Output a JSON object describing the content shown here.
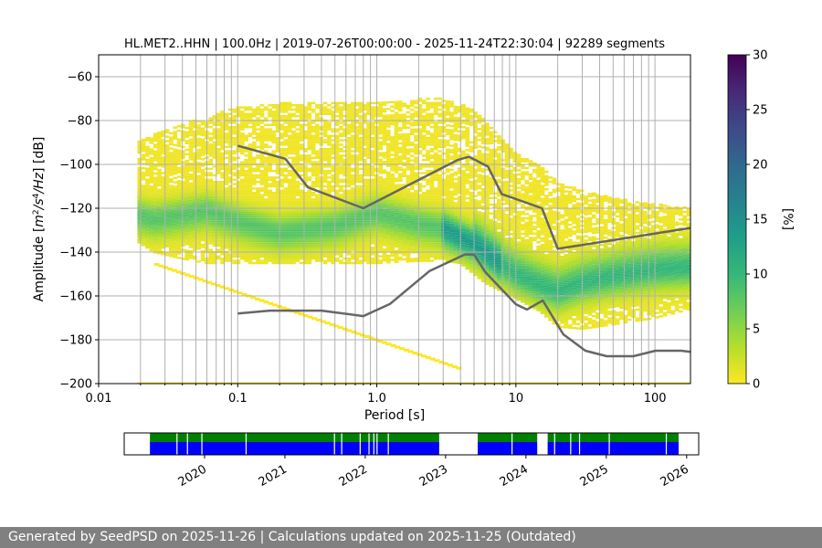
{
  "chart_data": {
    "type": "heatmap",
    "title": "HL.MET2..HHN | 100.0Hz | 2019-07-26T00:00:00 - 2025-11-24T22:30:04 | 92289 segments",
    "xlabel": "Period [s]",
    "ylabel": "Amplitude [m^2/s^4/Hz] [dB]",
    "xscale": "log",
    "xlim": [
      0.01,
      180
    ],
    "ylim": [
      -200,
      -50
    ],
    "xticks": [
      {
        "value": 0.01,
        "label": "0.01"
      },
      {
        "value": 0.1,
        "label": "0.1"
      },
      {
        "value": 1,
        "label": "1.0"
      },
      {
        "value": 10,
        "label": "10"
      },
      {
        "value": 100,
        "label": "100"
      }
    ],
    "yticks": [
      {
        "value": -60,
        "label": "−60"
      },
      {
        "value": -80,
        "label": "−80"
      },
      {
        "value": -100,
        "label": "−100"
      },
      {
        "value": -120,
        "label": "−120"
      },
      {
        "value": -140,
        "label": "−140"
      },
      {
        "value": -160,
        "label": "−160"
      },
      {
        "value": -180,
        "label": "−180"
      },
      {
        "value": -200,
        "label": "−200"
      }
    ],
    "grid": true,
    "colorbar": {
      "label": "[%]",
      "min": 0,
      "max": 30,
      "ticks": [
        {
          "value": 0,
          "label": "0"
        },
        {
          "value": 5,
          "label": "5"
        },
        {
          "value": 10,
          "label": "10"
        },
        {
          "value": 15,
          "label": "15"
        },
        {
          "value": 20,
          "label": "20"
        },
        {
          "value": 25,
          "label": "25"
        },
        {
          "value": 30,
          "label": "30"
        }
      ],
      "colors": [
        "#fde725",
        "#b5de2b",
        "#6ece58",
        "#35b779",
        "#1f9e89",
        "#26828e",
        "#31688e",
        "#3e4989",
        "#482878",
        "#440154"
      ]
    },
    "series": [
      {
        "name": "NHNM",
        "x": [
          0.1,
          0.22,
          0.32,
          0.8,
          3.8,
          4.6,
          6.3,
          7.9,
          15.4,
          20,
          180
        ],
        "y": [
          -91.5,
          -97.4,
          -110.5,
          -120,
          -98,
          -96.5,
          -101,
          -113.5,
          -120,
          -138.5,
          -129
        ]
      },
      {
        "name": "NLNM",
        "x": [
          0.1,
          0.17,
          0.4,
          0.8,
          1.24,
          2.4,
          4.3,
          5.0,
          6.0,
          10,
          12,
          15.6,
          21.9,
          31.6,
          45,
          70,
          101,
          154,
          180
        ],
        "y": [
          -168,
          -166.7,
          -166.7,
          -169.2,
          -163.7,
          -148.6,
          -141.1,
          -141.1,
          -149,
          -163.8,
          -166.2,
          -162.1,
          -177.5,
          -185,
          -187.5,
          -187.5,
          -185,
          -185,
          -185.5
        ]
      }
    ],
    "band": {
      "x": [
        0.019,
        0.025,
        0.04,
        0.06,
        0.1,
        0.2,
        0.5,
        1,
        2,
        3,
        4,
        5,
        6,
        8,
        10,
        15,
        20,
        30,
        50,
        100,
        180
      ],
      "mode_y": [
        -123,
        -125,
        -123,
        -121,
        -126,
        -131,
        -128,
        -122,
        -127,
        -129,
        -133,
        -136,
        -140,
        -146,
        -150,
        -155,
        -158,
        -154,
        -151,
        -148,
        -147
      ],
      "upper_y": [
        -90,
        -86,
        -82,
        -78,
        -74,
        -72,
        -72,
        -72,
        -70,
        -70,
        -72,
        -75,
        -80,
        -88,
        -95,
        -100,
        -108,
        -112,
        -115,
        -118,
        -120
      ],
      "lower_y": [
        -135,
        -140,
        -143,
        -145,
        -145,
        -145,
        -145,
        -145,
        -144,
        -144,
        -145,
        -150,
        -154,
        -158,
        -161,
        -167,
        -174,
        -175,
        -173,
        -170,
        -166
      ]
    }
  },
  "timeline": {
    "years": [
      "2020",
      "2021",
      "2022",
      "2023",
      "2024",
      "2025",
      "2026"
    ],
    "start": 2019.0,
    "end": 2026.15,
    "segments": [
      [
        2019.32,
        2022.92
      ],
      [
        2023.4,
        2024.14
      ],
      [
        2024.27,
        2025.9
      ]
    ],
    "gaps": [
      2019.65,
      2019.78,
      2019.96,
      2020.51,
      2021.61,
      2021.7,
      2021.93,
      2022.04,
      2022.1,
      2022.14,
      2022.28,
      2023.82,
      2024.35,
      2024.55,
      2024.66,
      2025.03,
      2025.74
    ],
    "colors": {
      "top": "#008000",
      "bottom": "#0000ff"
    }
  },
  "footer": {
    "text": "Generated by SeedPSD on 2025-11-26 | Calculations updated on 2025-11-25 (Outdated)"
  }
}
